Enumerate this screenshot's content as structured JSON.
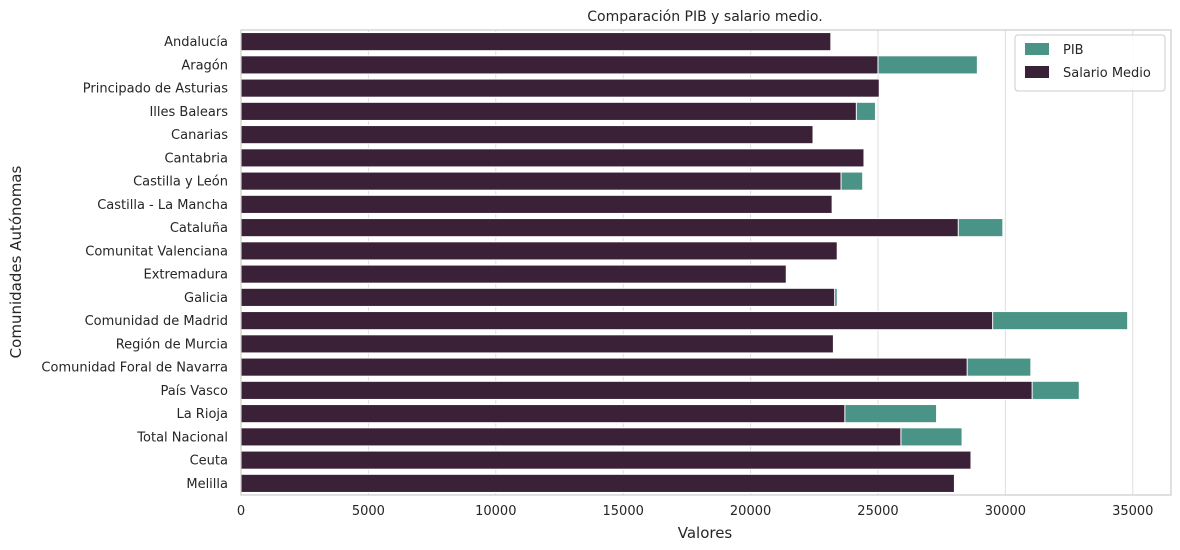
{
  "chart_data": {
    "type": "bar",
    "orientation": "horizontal",
    "title": "Comparación PIB y salario medio.",
    "xlabel": "Valores",
    "ylabel": "Comunidades Autónomas",
    "xlim": [
      0,
      36500
    ],
    "xticks": [
      0,
      5000,
      10000,
      15000,
      20000,
      25000,
      30000,
      35000
    ],
    "grid": true,
    "legend_position": "top-right",
    "categories": [
      "Andalucía",
      "Aragón",
      "Principado de Asturias",
      "Illes Balears",
      "Canarias",
      "Cantabria",
      "Castilla y León",
      "Castilla - La Mancha",
      "Cataluña",
      "Comunitat Valenciana",
      "Extremadura",
      "Galicia",
      "Comunidad de Madrid",
      "Región de Murcia",
      "Comunidad Foral de Navarra",
      "País Vasco",
      "La Rioja",
      "Total Nacional",
      "Ceuta",
      "Melilla"
    ],
    "series": [
      {
        "name": "PIB",
        "color": "#4a9387",
        "values": [
          22700,
          28900,
          25000,
          24900,
          22100,
          24400,
          24400,
          23000,
          29900,
          23200,
          21200,
          23400,
          34800,
          22900,
          31000,
          32900,
          27300,
          28300,
          28600,
          27800
        ]
      },
      {
        "name": "Salario Medio",
        "color": "#3b2137",
        "values": [
          23150,
          25000,
          25050,
          24150,
          22450,
          24450,
          23550,
          23200,
          28150,
          23400,
          21400,
          23300,
          29500,
          23250,
          28500,
          31050,
          23700,
          25900,
          28650,
          28000
        ]
      }
    ]
  }
}
